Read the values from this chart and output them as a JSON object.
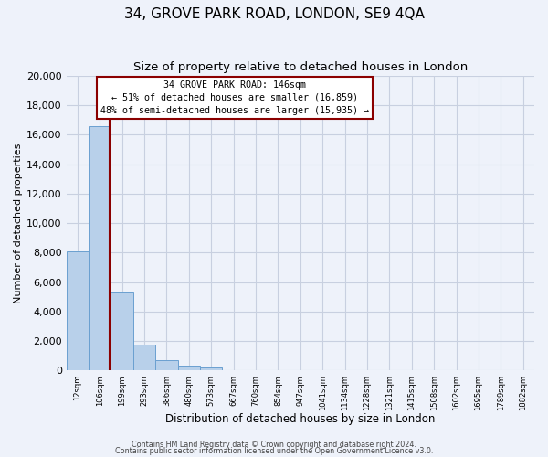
{
  "title": "34, GROVE PARK ROAD, LONDON, SE9 4QA",
  "subtitle": "Size of property relative to detached houses in London",
  "xlabel": "Distribution of detached houses by size in London",
  "ylabel": "Number of detached properties",
  "bar_labels": [
    "12sqm",
    "106sqm",
    "199sqm",
    "293sqm",
    "386sqm",
    "480sqm",
    "573sqm",
    "667sqm",
    "760sqm",
    "854sqm",
    "947sqm",
    "1041sqm",
    "1134sqm",
    "1228sqm",
    "1321sqm",
    "1415sqm",
    "1508sqm",
    "1602sqm",
    "1695sqm",
    "1789sqm",
    "1882sqm"
  ],
  "bar_values": [
    8100,
    16600,
    5300,
    1750,
    700,
    300,
    200,
    0,
    0,
    0,
    0,
    0,
    0,
    0,
    0,
    0,
    0,
    0,
    0,
    0,
    0
  ],
  "bar_color": "#b8d0ea",
  "bar_edgecolor": "#6aa0d0",
  "ylim": [
    0,
    20000
  ],
  "yticks": [
    0,
    2000,
    4000,
    6000,
    8000,
    10000,
    12000,
    14000,
    16000,
    18000,
    20000
  ],
  "vline_color": "#8b0000",
  "annotation_box_color": "#8b0000",
  "annotation_line1": "34 GROVE PARK ROAD: 146sqm",
  "annotation_line2": "← 51% of detached houses are smaller (16,859)",
  "annotation_line3": "48% of semi-detached houses are larger (15,935) →",
  "footer_line1": "Contains HM Land Registry data © Crown copyright and database right 2024.",
  "footer_line2": "Contains public sector information licensed under the Open Government Licence v3.0.",
  "background_color": "#eef2fa",
  "grid_color": "#c8d0e0",
  "title_fontsize": 11,
  "subtitle_fontsize": 9.5,
  "xlabel_fontsize": 8.5,
  "ylabel_fontsize": 8,
  "ytick_fontsize": 8,
  "xtick_fontsize": 6
}
